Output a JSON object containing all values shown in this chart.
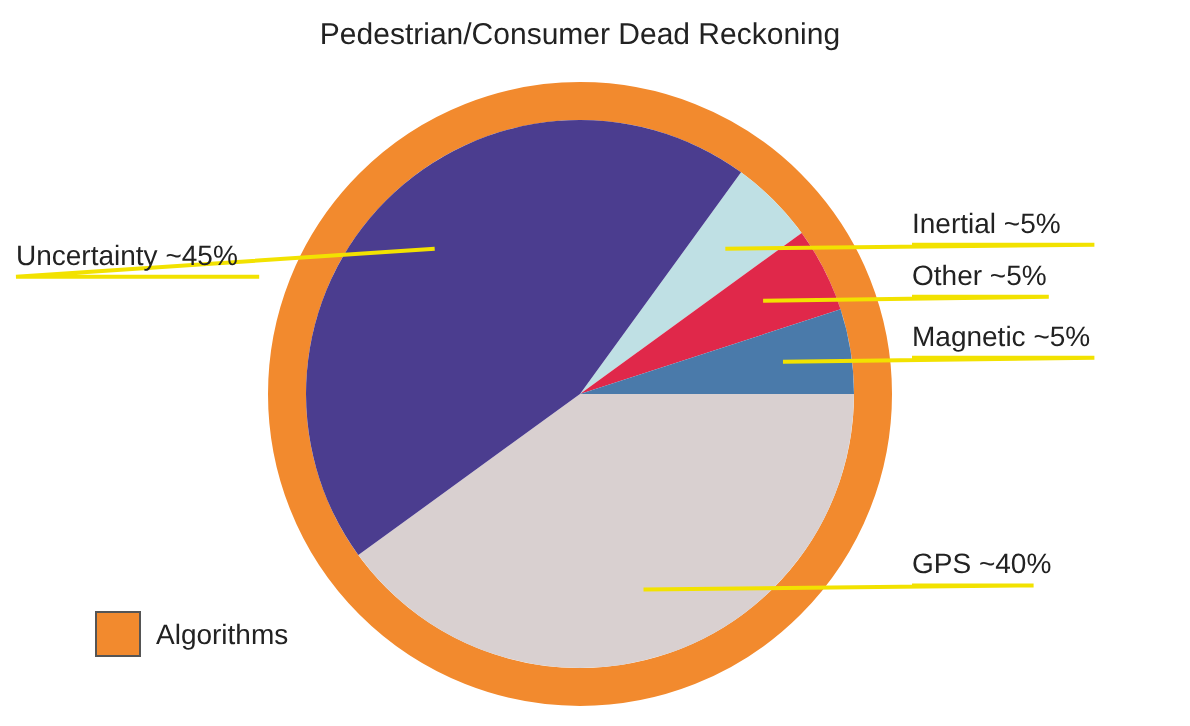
{
  "chart_data": {
    "type": "pie",
    "title": "Pedestrian/Consumer Dead Reckoning",
    "categories": [
      "Inertial",
      "Other",
      "Magnetic",
      "GPS",
      "Uncertainty"
    ],
    "values": [
      5,
      5,
      5,
      40,
      45
    ],
    "value_labels": [
      "~5%",
      "~5%",
      "~5%",
      "~40%",
      "~45%"
    ],
    "colors": [
      "#bfe0e4",
      "#e0284a",
      "#4a7aaa",
      "#d9d0d0",
      "#4b3d8f"
    ],
    "annotations": [
      "Algorithms"
    ]
  }
}
